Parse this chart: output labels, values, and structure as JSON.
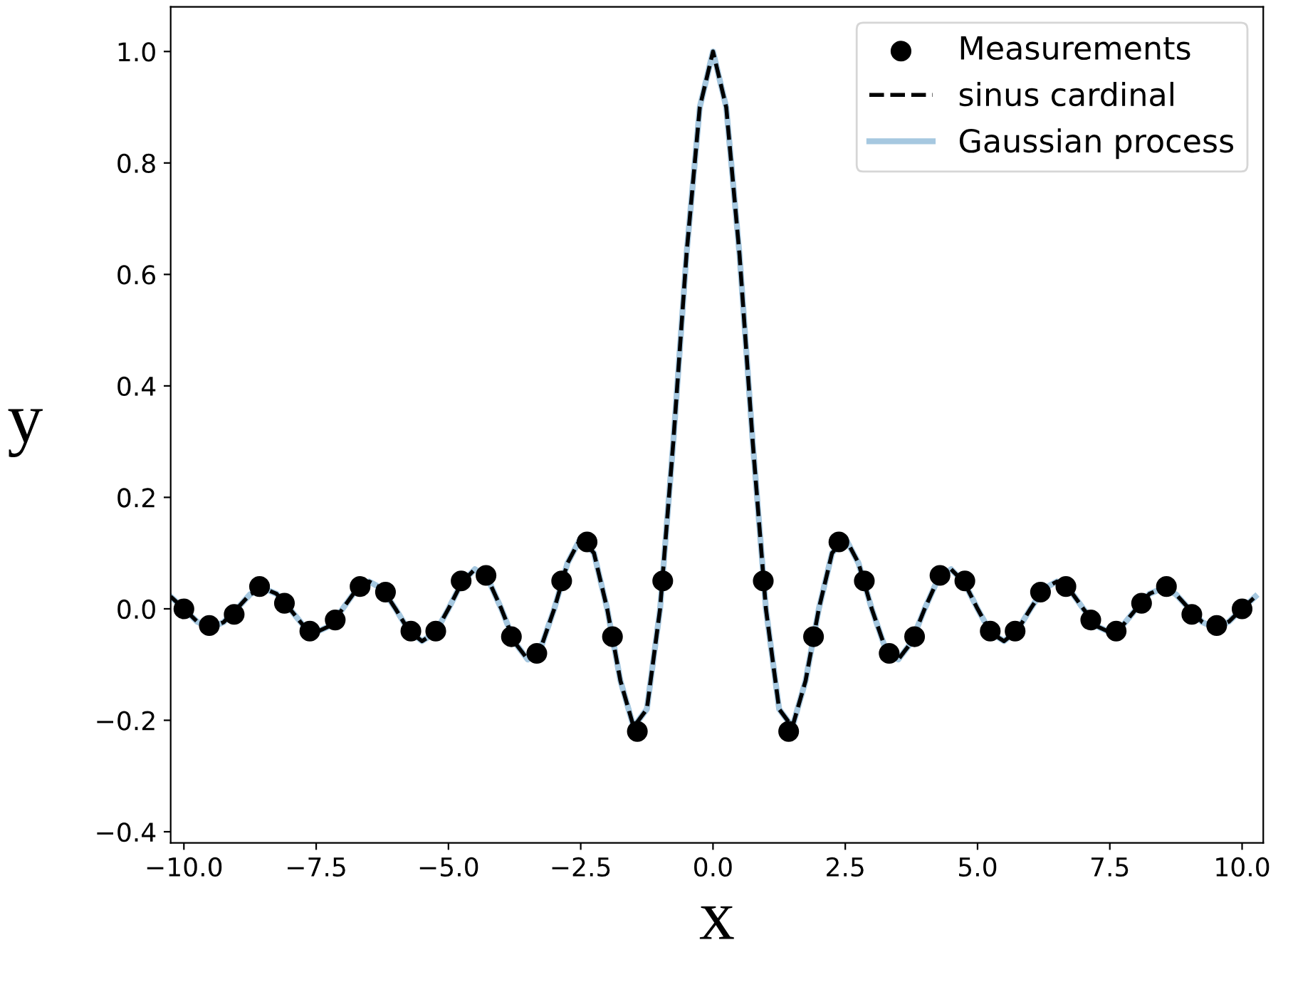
{
  "chart_data": {
    "type": "line",
    "xlabel": "x",
    "ylabel": "y",
    "xlim": [
      -10.25,
      10.4
    ],
    "ylim": [
      -0.42,
      1.08
    ],
    "xticks": [
      {
        "value": -10,
        "label": "−10.0"
      },
      {
        "value": -7.5,
        "label": "−7.5"
      },
      {
        "value": -5,
        "label": "−5.0"
      },
      {
        "value": -2.5,
        "label": "−2.5"
      },
      {
        "value": 0,
        "label": "0.0"
      },
      {
        "value": 2.5,
        "label": "2.5"
      },
      {
        "value": 5,
        "label": "5.0"
      },
      {
        "value": 7.5,
        "label": "7.5"
      },
      {
        "value": 10,
        "label": "10.0"
      }
    ],
    "yticks": [
      {
        "value": -0.4,
        "label": "−0.4"
      },
      {
        "value": -0.2,
        "label": "−0.2"
      },
      {
        "value": 0,
        "label": "0.0"
      },
      {
        "value": 0.2,
        "label": "0.2"
      },
      {
        "value": 0.4,
        "label": "0.4"
      },
      {
        "value": 0.6,
        "label": "0.6"
      },
      {
        "value": 0.8,
        "label": "0.8"
      },
      {
        "value": 1.0,
        "label": "1.0"
      }
    ],
    "grid": false,
    "legend": "top right",
    "x": [
      -10.25,
      -10,
      -9.75,
      -9.5,
      -9.25,
      -9,
      -8.75,
      -8.5,
      -8.25,
      -8,
      -7.75,
      -7.5,
      -7.25,
      -7,
      -6.75,
      -6.5,
      -6.25,
      -6,
      -5.75,
      -5.5,
      -5.25,
      -5,
      -4.75,
      -4.5,
      -4.25,
      -4,
      -3.75,
      -3.5,
      -3.25,
      -3,
      -2.75,
      -2.5,
      -2.25,
      -2,
      -1.75,
      -1.5,
      -1.25,
      -1,
      -0.75,
      -0.5,
      -0.25,
      0,
      0.25,
      0.5,
      0.75,
      1,
      1.25,
      1.5,
      1.75,
      2,
      2.25,
      2.5,
      2.75,
      3,
      3.25,
      3.5,
      3.75,
      4,
      4.25,
      4.5,
      4.75,
      5,
      5.25,
      5.5,
      5.75,
      6,
      6.25,
      6.5,
      6.75,
      7,
      7.25,
      7.5,
      7.75,
      8,
      8.25,
      8.5,
      8.75,
      9,
      9.25,
      9.5,
      9.75,
      10,
      10.25
    ],
    "series": [
      {
        "name": "Gaussian process",
        "color": "#a6c8e0",
        "line_style": "solid",
        "marker": "none",
        "values": [
          0.022,
          0,
          -0.023,
          -0.034,
          -0.024,
          0,
          0.026,
          0.037,
          0.027,
          0,
          -0.029,
          -0.042,
          -0.031,
          0,
          0.033,
          0.049,
          0.036,
          0,
          -0.039,
          -0.058,
          -0.043,
          0,
          0.047,
          0.071,
          0.053,
          0,
          -0.06,
          -0.091,
          -0.069,
          0,
          0.082,
          0.127,
          0.1,
          0,
          -0.129,
          -0.212,
          -0.18,
          0,
          0.3,
          0.637,
          0.9,
          1,
          0.9,
          0.637,
          0.3,
          0,
          -0.18,
          -0.212,
          -0.129,
          0,
          0.1,
          0.127,
          0.082,
          0,
          -0.069,
          -0.091,
          -0.06,
          0,
          0.053,
          0.071,
          0.047,
          0,
          -0.043,
          -0.058,
          -0.039,
          0,
          0.036,
          0.049,
          0.033,
          0,
          -0.031,
          -0.042,
          -0.029,
          0,
          0.027,
          0.037,
          0.026,
          0,
          -0.024,
          -0.034,
          -0.023,
          0,
          0.022
        ]
      },
      {
        "name": "sinus cardinal",
        "color": "#000000",
        "line_style": "dashed",
        "marker": "none",
        "values": [
          0.022,
          0,
          -0.023,
          -0.034,
          -0.024,
          0,
          0.026,
          0.037,
          0.027,
          0,
          -0.029,
          -0.042,
          -0.031,
          0,
          0.033,
          0.049,
          0.036,
          0,
          -0.039,
          -0.058,
          -0.043,
          0,
          0.047,
          0.071,
          0.053,
          0,
          -0.06,
          -0.091,
          -0.069,
          0,
          0.082,
          0.127,
          0.1,
          0,
          -0.129,
          -0.212,
          -0.18,
          0,
          0.3,
          0.637,
          0.9,
          1,
          0.9,
          0.637,
          0.3,
          0,
          -0.18,
          -0.212,
          -0.129,
          0,
          0.1,
          0.127,
          0.082,
          0,
          -0.069,
          -0.091,
          -0.06,
          0,
          0.053,
          0.071,
          0.047,
          0,
          -0.043,
          -0.058,
          -0.039,
          0,
          0.036,
          0.049,
          0.033,
          0,
          -0.031,
          -0.042,
          -0.029,
          0,
          0.027,
          0.037,
          0.026,
          0,
          -0.024,
          -0.034,
          -0.023,
          0,
          0.022
        ]
      },
      {
        "name": "Measurements",
        "type": "scatter",
        "color": "#000000",
        "marker": "circle",
        "x": [
          -10,
          -9.52,
          -9.05,
          -8.57,
          -8.1,
          -7.62,
          -7.14,
          -6.67,
          -6.19,
          -5.71,
          -5.24,
          -4.76,
          -4.29,
          -3.81,
          -3.33,
          -2.86,
          -2.38,
          -1.9,
          -1.43,
          -0.95,
          0.95,
          1.43,
          1.9,
          2.38,
          2.86,
          3.33,
          3.81,
          4.29,
          4.76,
          5.24,
          5.71,
          6.19,
          6.67,
          7.14,
          7.62,
          8.1,
          8.57,
          9.05,
          9.52,
          10
        ],
        "values": [
          0,
          -0.03,
          -0.01,
          0.04,
          0.01,
          -0.04,
          -0.02,
          0.04,
          0.03,
          -0.04,
          -0.04,
          0.05,
          0.06,
          -0.05,
          -0.08,
          0.05,
          0.12,
          -0.05,
          -0.22,
          0.05,
          0.05,
          -0.22,
          -0.05,
          0.12,
          0.05,
          -0.08,
          -0.05,
          0.06,
          0.05,
          -0.04,
          -0.04,
          0.03,
          0.04,
          -0.02,
          -0.04,
          0.01,
          0.04,
          -0.01,
          -0.03,
          0
        ]
      }
    ]
  }
}
